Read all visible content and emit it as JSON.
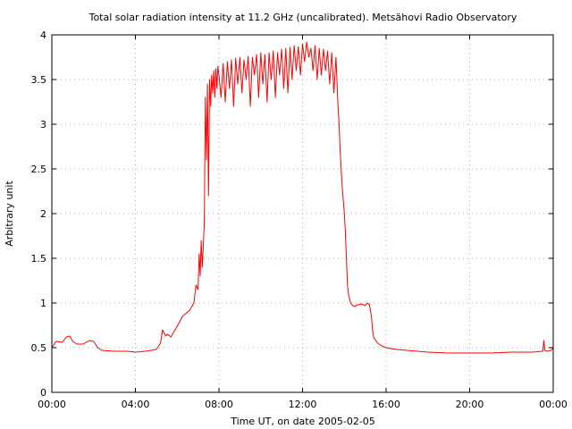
{
  "chart_data": {
    "type": "line",
    "title": "Total solar radiation intensity at 11.2 GHz (uncalibrated). Metsähovi Radio Observatory",
    "xlabel": "Time UT, on date 2005-02-05",
    "ylabel": "Arbitrary unit",
    "x_unit": "hours UT",
    "xlim": [
      0,
      24
    ],
    "ylim": [
      0,
      4
    ],
    "grid": true,
    "legend": "none",
    "line_color": "#ff0000",
    "x_ticks": [
      {
        "value": 0,
        "label": "00:00"
      },
      {
        "value": 4,
        "label": "04:00"
      },
      {
        "value": 8,
        "label": "08:00"
      },
      {
        "value": 12,
        "label": "12:00"
      },
      {
        "value": 16,
        "label": "16:00"
      },
      {
        "value": 20,
        "label": "20:00"
      },
      {
        "value": 24,
        "label": "00:00"
      }
    ],
    "y_ticks": [
      {
        "value": 0,
        "label": "0"
      },
      {
        "value": 0.5,
        "label": "0.5"
      },
      {
        "value": 1,
        "label": "1"
      },
      {
        "value": 1.5,
        "label": "1.5"
      },
      {
        "value": 2,
        "label": "2"
      },
      {
        "value": 2.5,
        "label": "2.5"
      },
      {
        "value": 3,
        "label": "3"
      },
      {
        "value": 3.5,
        "label": "3.5"
      },
      {
        "value": 4,
        "label": "4"
      }
    ],
    "series": [
      {
        "x": [
          0.0,
          0.2,
          0.5,
          0.7,
          0.85,
          1.0,
          1.2,
          1.5,
          1.8,
          2.0,
          2.2,
          2.4,
          3.0,
          3.6,
          4.0,
          4.5,
          5.0,
          5.2,
          5.3,
          5.45,
          5.55,
          5.7,
          5.9,
          6.1,
          6.25,
          6.4,
          6.6,
          6.8,
          6.9,
          7.0,
          7.05,
          7.1,
          7.15,
          7.2,
          7.25,
          7.3,
          7.35,
          7.4,
          7.45,
          7.5,
          7.55,
          7.6,
          7.65,
          7.7,
          7.75,
          7.8,
          7.85,
          7.9,
          7.95,
          8.0,
          8.1,
          8.2,
          8.3,
          8.4,
          8.5,
          8.6,
          8.7,
          8.8,
          8.9,
          9.0,
          9.1,
          9.2,
          9.3,
          9.4,
          9.5,
          9.6,
          9.7,
          9.8,
          9.9,
          10.0,
          10.1,
          10.2,
          10.3,
          10.4,
          10.5,
          10.6,
          10.7,
          10.8,
          10.9,
          11.0,
          11.1,
          11.2,
          11.3,
          11.4,
          11.5,
          11.6,
          11.7,
          11.8,
          11.9,
          12.0,
          12.1,
          12.2,
          12.3,
          12.4,
          12.5,
          12.6,
          12.7,
          12.8,
          12.9,
          13.0,
          13.1,
          13.2,
          13.3,
          13.4,
          13.5,
          13.6,
          13.7,
          13.75,
          13.8,
          13.85,
          13.9,
          13.95,
          14.0,
          14.05,
          14.1,
          14.15,
          14.2,
          14.3,
          14.4,
          14.5,
          14.6,
          14.7,
          14.8,
          14.9,
          15.0,
          15.1,
          15.2,
          15.3,
          15.35,
          15.4,
          15.5,
          15.6,
          15.8,
          16.0,
          16.5,
          17.0,
          18.0,
          19.0,
          20.0,
          21.0,
          22.0,
          23.0,
          23.5,
          23.55,
          23.6,
          23.7,
          23.9,
          24.0
        ],
        "y": [
          0.5,
          0.57,
          0.56,
          0.62,
          0.63,
          0.57,
          0.54,
          0.54,
          0.58,
          0.57,
          0.5,
          0.47,
          0.46,
          0.46,
          0.45,
          0.46,
          0.48,
          0.55,
          0.7,
          0.63,
          0.65,
          0.62,
          0.7,
          0.78,
          0.85,
          0.88,
          0.92,
          1.0,
          1.2,
          1.15,
          1.55,
          1.3,
          1.7,
          1.4,
          1.65,
          1.9,
          3.3,
          2.6,
          3.45,
          2.2,
          3.5,
          3.2,
          3.55,
          3.35,
          3.6,
          3.3,
          3.62,
          3.4,
          3.65,
          3.55,
          3.3,
          3.68,
          3.25,
          3.7,
          3.4,
          3.72,
          3.2,
          3.74,
          3.45,
          3.75,
          3.35,
          3.72,
          3.5,
          3.76,
          3.2,
          3.75,
          3.55,
          3.78,
          3.3,
          3.8,
          3.45,
          3.78,
          3.25,
          3.8,
          3.5,
          3.82,
          3.3,
          3.8,
          3.55,
          3.84,
          3.4,
          3.85,
          3.35,
          3.86,
          3.5,
          3.88,
          3.6,
          3.87,
          3.55,
          3.9,
          3.7,
          3.92,
          3.75,
          3.85,
          3.6,
          3.88,
          3.5,
          3.85,
          3.55,
          3.84,
          3.6,
          3.82,
          3.45,
          3.8,
          3.35,
          3.75,
          3.2,
          3.0,
          2.7,
          2.5,
          2.3,
          2.15,
          2.0,
          1.8,
          1.5,
          1.2,
          1.1,
          1.0,
          0.97,
          0.96,
          0.98,
          0.98,
          0.99,
          0.98,
          0.97,
          1.0,
          0.98,
          0.85,
          0.7,
          0.62,
          0.58,
          0.55,
          0.52,
          0.5,
          0.48,
          0.47,
          0.45,
          0.44,
          0.44,
          0.44,
          0.45,
          0.45,
          0.46,
          0.58,
          0.47,
          0.46,
          0.47,
          0.5
        ]
      }
    ]
  }
}
